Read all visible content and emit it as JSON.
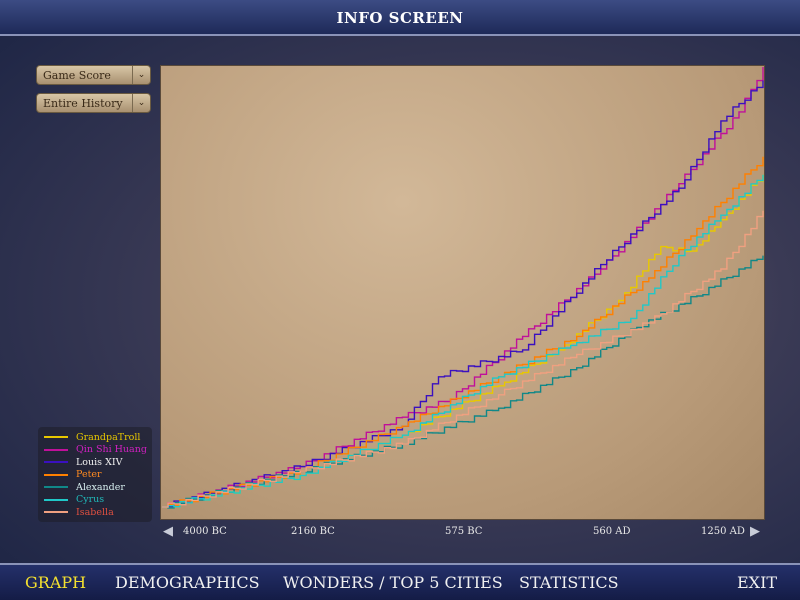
{
  "header": {
    "title": "INFO SCREEN"
  },
  "controls": {
    "metric": "Game Score",
    "range": "Entire History"
  },
  "nav": [
    {
      "label": "GRAPH",
      "active": true
    },
    {
      "label": "DEMOGRAPHICS"
    },
    {
      "label": "WONDERS / TOP 5 CITIES"
    },
    {
      "label": "STATISTICS"
    },
    {
      "label": "EXIT"
    }
  ],
  "chart_data": {
    "type": "line",
    "title": "",
    "xlabel": "",
    "ylabel": "",
    "x_tick_labels": [
      "4000 BC",
      "2160 BC",
      "575 BC",
      "560 AD",
      "1250 AD"
    ],
    "xlim": [
      0,
      100
    ],
    "ylim": [
      0,
      100
    ],
    "grid": false,
    "legend": "bottom-left",
    "series": [
      {
        "name": "GrandpaTroll",
        "color": "#e8c800",
        "label_color": "#e8c800",
        "points": [
          [
            0,
            2
          ],
          [
            23,
            9
          ],
          [
            40,
            18
          ],
          [
            56,
            29
          ],
          [
            66,
            37
          ],
          [
            76,
            48
          ],
          [
            83,
            60
          ],
          [
            88,
            59
          ],
          [
            93,
            66
          ],
          [
            100,
            76
          ]
        ]
      },
      {
        "name": "Qin Shi Huang",
        "color": "#c0109a",
        "label_color": "#d020c0",
        "points": [
          [
            0,
            2
          ],
          [
            23,
            11
          ],
          [
            40,
            22
          ],
          [
            48,
            26
          ],
          [
            60,
            40
          ],
          [
            73,
            55
          ],
          [
            86,
            74
          ],
          [
            96,
            90
          ],
          [
            100,
            100
          ]
        ]
      },
      {
        "name": "Louis XIV",
        "color": "#3a10c0",
        "label_color": "#f0f0f0",
        "points": [
          [
            0,
            2
          ],
          [
            23,
            11
          ],
          [
            40,
            20
          ],
          [
            46,
            31
          ],
          [
            60,
            37
          ],
          [
            73,
            56
          ],
          [
            86,
            73
          ],
          [
            93,
            88
          ],
          [
            100,
            97
          ]
        ]
      },
      {
        "name": "Peter",
        "color": "#ff8000",
        "label_color": "#ff8a20",
        "points": [
          [
            0,
            2
          ],
          [
            23,
            10
          ],
          [
            40,
            20
          ],
          [
            56,
            31
          ],
          [
            69,
            40
          ],
          [
            81,
            53
          ],
          [
            89,
            64
          ],
          [
            100,
            80
          ]
        ]
      },
      {
        "name": "Alexander",
        "color": "#108888",
        "label_color": "#d8f0f0",
        "points": [
          [
            0,
            2
          ],
          [
            23,
            10
          ],
          [
            40,
            16
          ],
          [
            56,
            24
          ],
          [
            69,
            33
          ],
          [
            79,
            42
          ],
          [
            89,
            49
          ],
          [
            100,
            58
          ]
        ]
      },
      {
        "name": "Cyrus",
        "color": "#20c8c8",
        "label_color": "#20b8b8",
        "points": [
          [
            0,
            2
          ],
          [
            23,
            9
          ],
          [
            40,
            18
          ],
          [
            56,
            31
          ],
          [
            68,
            38
          ],
          [
            78,
            44
          ],
          [
            86,
            58
          ],
          [
            93,
            67
          ],
          [
            100,
            76
          ]
        ]
      },
      {
        "name": "Isabella",
        "color": "#f0a080",
        "label_color": "#e05040",
        "points": [
          [
            0,
            2
          ],
          [
            23,
            10
          ],
          [
            40,
            16
          ],
          [
            56,
            27
          ],
          [
            69,
            36
          ],
          [
            81,
            43
          ],
          [
            93,
            55
          ],
          [
            100,
            68
          ]
        ]
      }
    ]
  }
}
